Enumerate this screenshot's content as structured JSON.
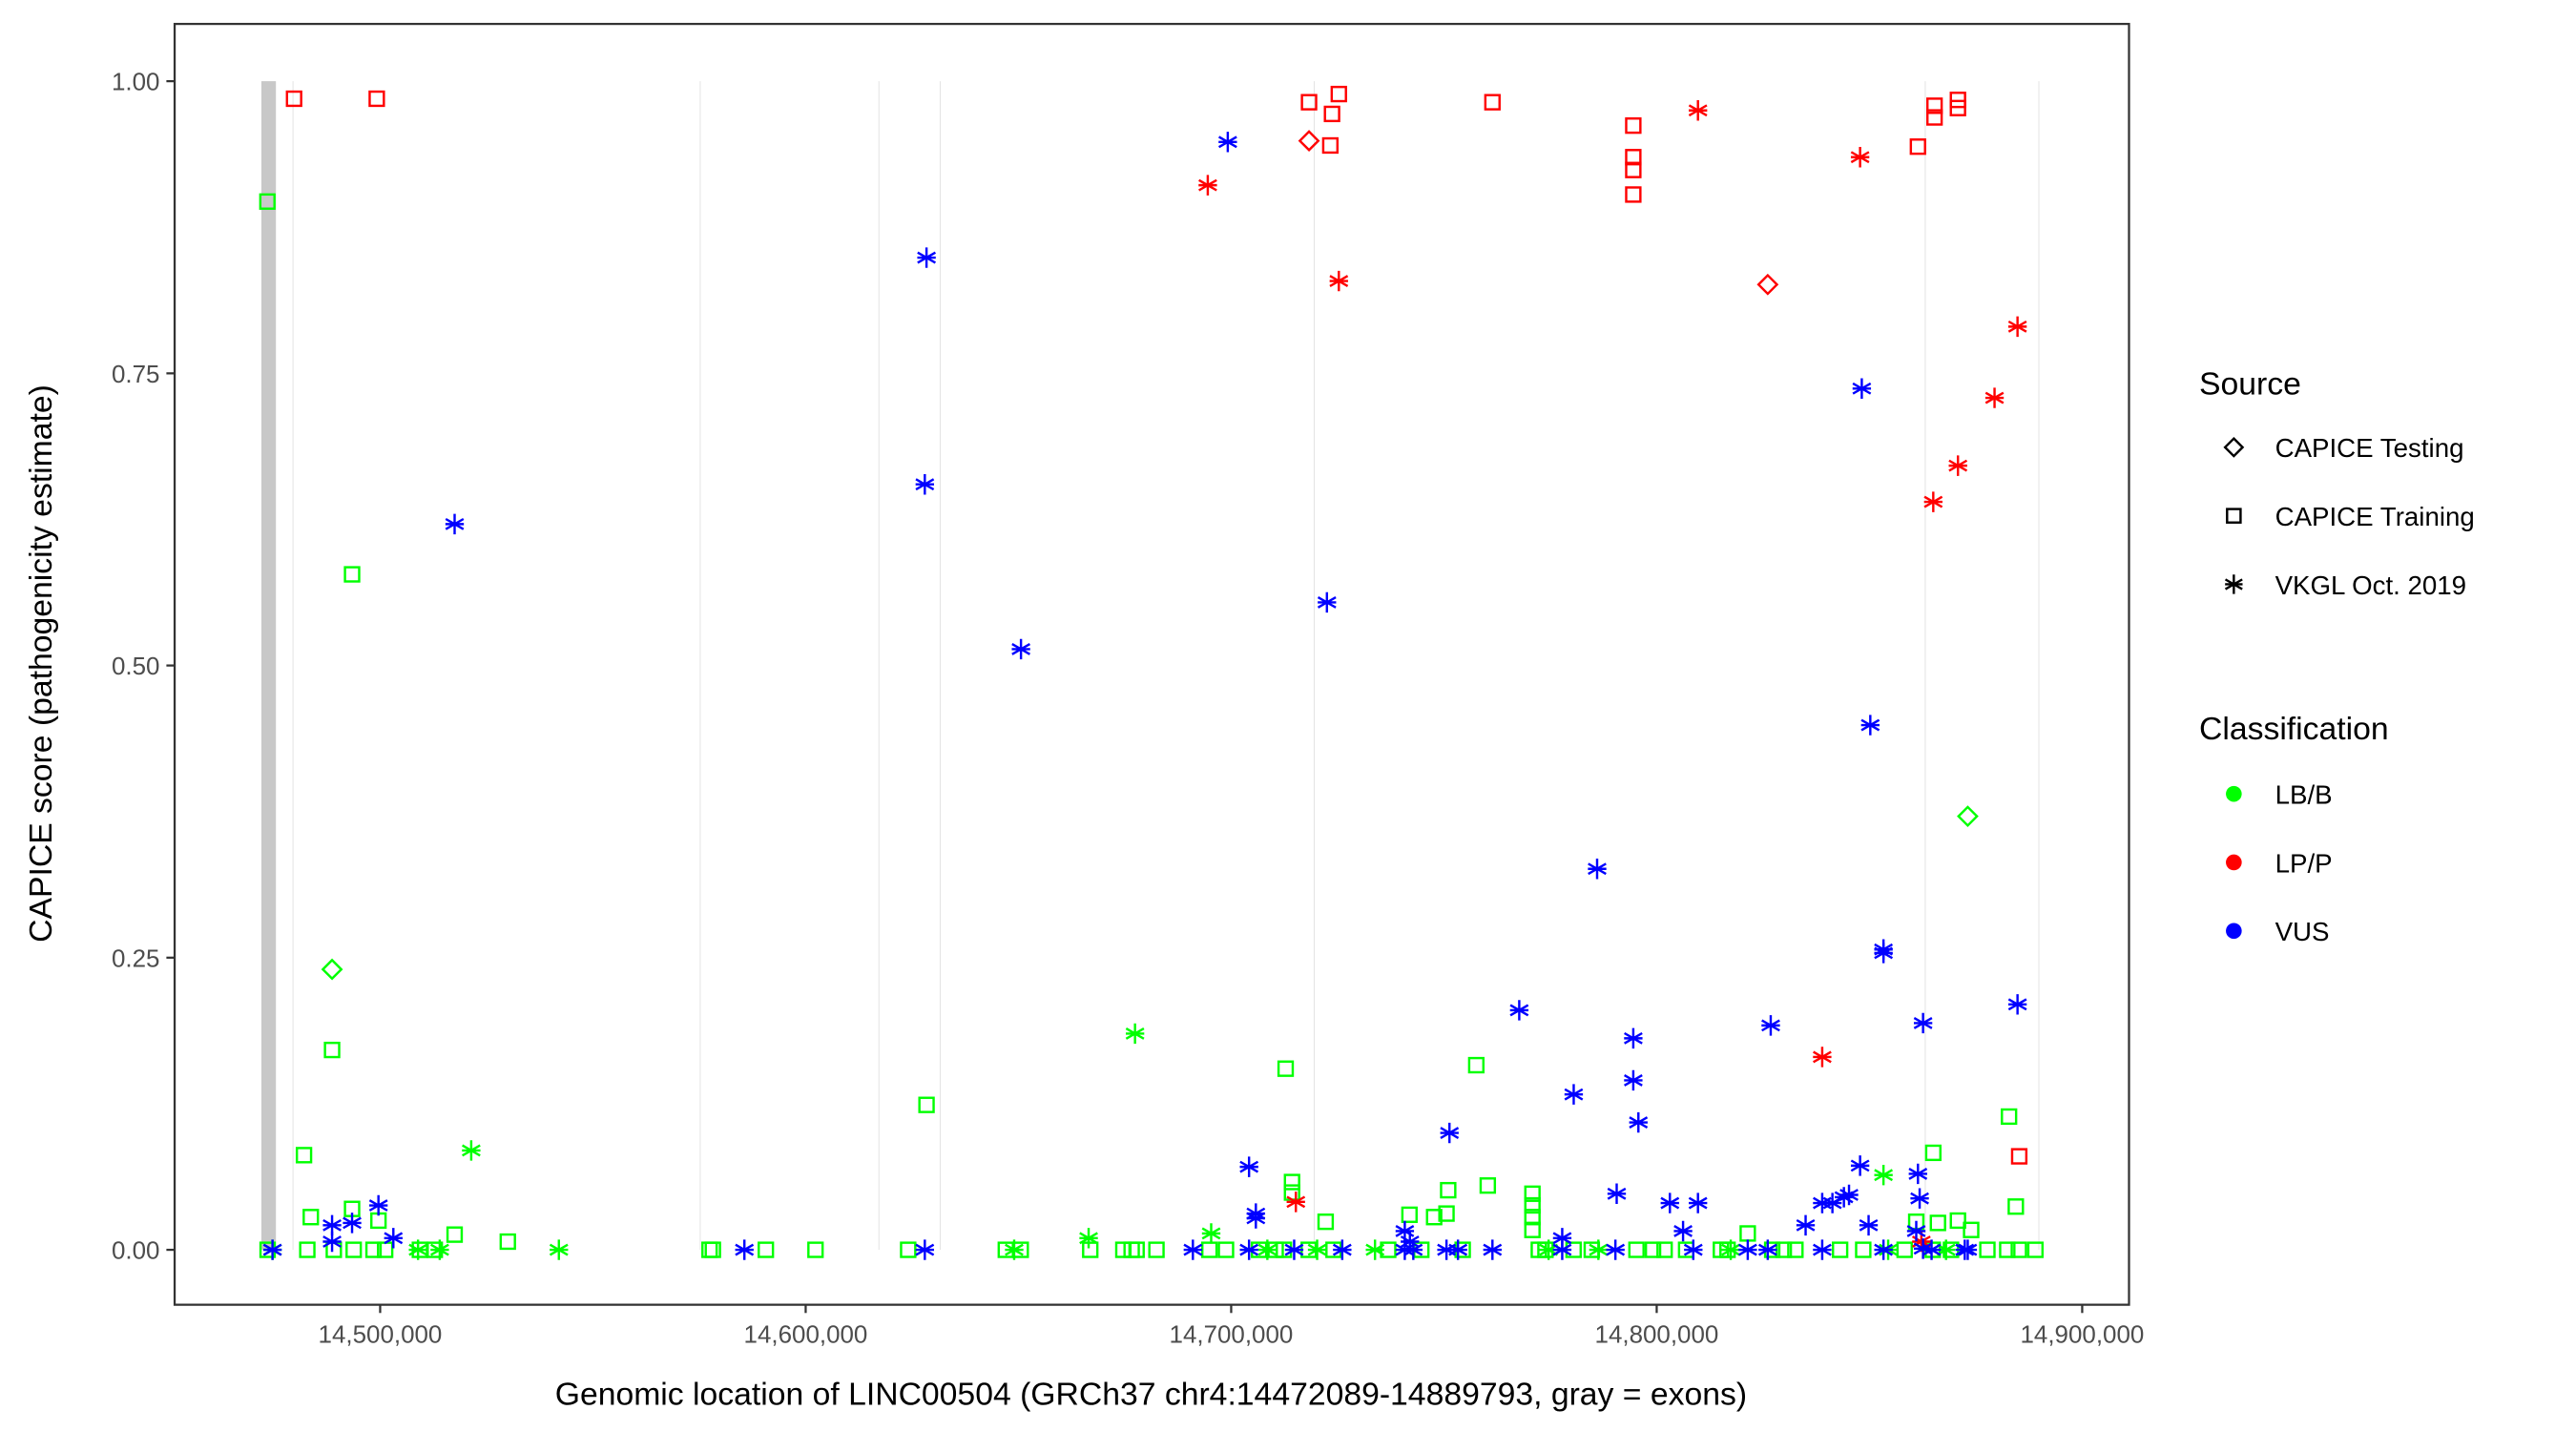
{
  "chart_data": {
    "type": "scatter",
    "xlabel": "Genomic location of LINC00504 (GRCh37 chr4:14472089-14889793, gray = exons)",
    "ylabel": "CAPICE score (pathogenicity estimate)",
    "xlim": [
      14451700,
      14911000
    ],
    "ylim": [
      -0.047,
      1.049
    ],
    "x_ticks": [
      14500000,
      14600000,
      14700000,
      14800000,
      14900000
    ],
    "x_tick_labels": [
      "14,500,000",
      "14,600,000",
      "14,700,000",
      "14,800,000",
      "14,900,000"
    ],
    "y_ticks": [
      0,
      0.25,
      0.5,
      0.75,
      1.0
    ],
    "y_tick_labels": [
      "0.00",
      "0.25",
      "0.50",
      "0.75",
      "1.00"
    ],
    "grid": false,
    "exon_color": "#c8c8c8",
    "exons": [
      [
        14472089,
        14475500
      ],
      [
        14479400,
        14479400
      ],
      [
        14575100,
        14575100
      ],
      [
        14617100,
        14617100
      ],
      [
        14631500,
        14631500
      ],
      [
        14719400,
        14719400
      ],
      [
        14863000,
        14863000
      ],
      [
        14889700,
        14889700
      ]
    ],
    "legend": {
      "placement": "right",
      "source_title": "Source",
      "source_entries": [
        {
          "label": "CAPICE Testing",
          "shape": "diamond"
        },
        {
          "label": "CAPICE Training",
          "shape": "square"
        },
        {
          "label": "VKGL Oct. 2019",
          "shape": "asterisk"
        }
      ],
      "class_title": "Classification",
      "class_entries": [
        {
          "label": "LB/B",
          "color": "#00ff00"
        },
        {
          "label": "LP/P",
          "color": "#ff0000"
        },
        {
          "label": "VUS",
          "color": "#0000ff"
        }
      ]
    },
    "series": [
      {
        "source": "CAPICE Training",
        "classification": "LB/B",
        "x": [
          14473500,
          14493400,
          14488700,
          14482100,
          14628400,
          14712800,
          14757600,
          14882800,
          14865000,
          14714300,
          14714300,
          14751000,
          14760300,
          14770800,
          14770800,
          14770800,
          14770800,
          14884400,
          14483700,
          14493400,
          14499600,
          14517500,
          14530000,
          14741900,
          14747700,
          14750600,
          14722200,
          14861000,
          14866100,
          14870800,
          14821400,
          14873900,
          14473550,
          14482880,
          14489110,
          14493780,
          14498440,
          14501170,
          14509340,
          14512840,
          14577410,
          14578190,
          14590640,
          14602310,
          14624090,
          14647040,
          14650540,
          14666880,
          14674660,
          14676610,
          14677770,
          14682440,
          14694890,
          14698780,
          14706560,
          14710450,
          14712390,
          14718230,
          14724060,
          14736900,
          14744680,
          14754410,
          14772300,
          14773860,
          14780470,
          14784750,
          14795250,
          14799140,
          14801860,
          14806920,
          14815090,
          14816650,
          14827150,
          14829870,
          14832600,
          14843100,
          14848540,
          14858270,
          14864880,
          14869160,
          14877720,
          14882390,
          14885110,
          14889000
        ],
        "y": [
          0.897,
          0.578,
          0.171,
          0.081,
          0.124,
          0.155,
          0.158,
          0.114,
          0.083,
          0.058,
          0.049,
          0.051,
          0.055,
          0.048,
          0.038,
          0.028,
          0.017,
          0.037,
          0.028,
          0.035,
          0.025,
          0.013,
          0.007,
          0.03,
          0.028,
          0.031,
          0.024,
          0.024,
          0.023,
          0.025,
          0.014,
          0.017,
          0,
          0,
          0,
          0,
          0,
          0,
          0,
          0,
          0,
          0,
          0,
          0,
          0,
          0,
          0,
          0,
          0,
          0,
          0,
          0,
          0,
          0,
          0,
          0,
          0,
          0,
          0,
          0,
          0,
          0,
          0,
          0,
          0,
          0,
          0,
          0,
          0,
          0,
          0,
          0,
          0,
          0,
          0,
          0,
          0,
          0,
          0,
          0,
          0,
          0,
          0,
          0
        ]
      },
      {
        "source": "CAPICE Training",
        "classification": "LP/P",
        "x": [
          14479770,
          14499200,
          14718300,
          14725300,
          14723700,
          14723300,
          14761400,
          14794500,
          14794500,
          14794500,
          14794500,
          14861400,
          14865300,
          14865300,
          14870800,
          14870800,
          14885200
        ],
        "y": [
          0.985,
          0.985,
          0.982,
          0.989,
          0.972,
          0.945,
          0.982,
          0.962,
          0.935,
          0.924,
          0.903,
          0.944,
          0.979,
          0.969,
          0.984,
          0.977,
          0.08
        ]
      },
      {
        "source": "CAPICE Testing",
        "classification": "LP/P",
        "x": [
          14718300,
          14826100
        ],
        "y": [
          0.949,
          0.826
        ]
      },
      {
        "source": "CAPICE Testing",
        "classification": "LB/B",
        "x": [
          14488700,
          14873100
        ],
        "y": [
          0.24,
          0.371
        ]
      },
      {
        "source": "VKGL Oct. 2019",
        "classification": "LP/P",
        "x": [
          14694500,
          14725300,
          14809700,
          14847800,
          14884800,
          14879400,
          14870800,
          14865000,
          14838900,
          14715200,
          14862200
        ],
        "y": [
          0.911,
          0.829,
          0.975,
          0.935,
          0.79,
          0.729,
          0.671,
          0.64,
          0.165,
          0.041,
          0.007
        ]
      },
      {
        "source": "VKGL Oct. 2019",
        "classification": "LB/B",
        "x": [
          14521400,
          14677400,
          14853300,
          14695300,
          14666500,
          14474700,
          14508900,
          14514000,
          14542000,
          14649000,
          14708500,
          14720200,
          14733800,
          14774600,
          14786300,
          14817400,
          14854400,
          14868000
        ],
        "y": [
          0.085,
          0.185,
          0.064,
          0.014,
          0.01,
          0,
          0,
          0,
          0,
          0,
          0,
          0,
          0,
          0,
          0,
          0,
          0,
          0
        ]
      },
      {
        "source": "VKGL Oct. 2019",
        "classification": "VUS",
        "x": [
          14699200,
          14628400,
          14628000,
          14650600,
          14517500,
          14722500,
          14848200,
          14850200,
          14786000,
          14853300,
          14853300,
          14884800,
          14767700,
          14862600,
          14826800,
          14794500,
          14794500,
          14780500,
          14795700,
          14751300,
          14704200,
          14847800,
          14861400,
          14790600,
          14705800,
          14705800,
          14803100,
          14809700,
          14838900,
          14841300,
          14844000,
          14845200,
          14861800,
          14835000,
          14849800,
          14806200,
          14740800,
          14742000,
          14777800,
          14861000,
          14862600,
          14499600,
          14488700,
          14493400,
          14488700,
          14503100,
          14474700,
          14585600,
          14628000,
          14691000,
          14704200,
          14714800,
          14726100,
          14740800,
          14742800,
          14750600,
          14753300,
          14761400,
          14777800,
          14790300,
          14808600,
          14821400,
          14826100,
          14838900,
          14853300,
          14864600,
          14872400,
          14873100
        ],
        "y": [
          0.948,
          0.849,
          0.655,
          0.514,
          0.621,
          0.554,
          0.737,
          0.449,
          0.326,
          0.257,
          0.254,
          0.21,
          0.205,
          0.194,
          0.192,
          0.181,
          0.145,
          0.133,
          0.109,
          0.1,
          0.071,
          0.072,
          0.065,
          0.048,
          0.031,
          0.027,
          0.04,
          0.04,
          0.04,
          0.04,
          0.045,
          0.047,
          0.044,
          0.021,
          0.021,
          0.016,
          0.016,
          0.007,
          0.01,
          0.016,
          0.001,
          0.038,
          0.021,
          0.023,
          0.007,
          0.01,
          0,
          0,
          0,
          0,
          0,
          0,
          0,
          0,
          0,
          0,
          0,
          0,
          0,
          0,
          0,
          0,
          0,
          0,
          0,
          0,
          0,
          0
        ]
      }
    ]
  }
}
